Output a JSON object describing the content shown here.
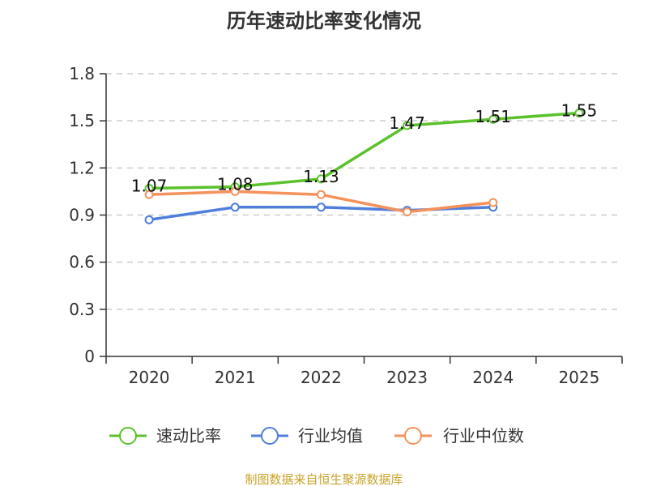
{
  "chart_data": {
    "type": "line",
    "title": "历年速动比率变化情况",
    "categories": [
      "2020",
      "2021",
      "2022",
      "2023",
      "2024",
      "2025"
    ],
    "ylim": [
      0,
      1.8
    ],
    "yticks": [
      "0",
      "0.3",
      "0.6",
      "0.9",
      "1.2",
      "1.5",
      "1.8"
    ],
    "ytick_values": [
      0,
      0.3,
      0.6,
      0.9,
      1.2,
      1.5,
      1.8
    ],
    "grid": true,
    "legend_position": "bottom",
    "series": [
      {
        "name": "速动比率",
        "color": "#5cc22b",
        "values": [
          1.07,
          1.08,
          1.13,
          1.47,
          1.51,
          1.55
        ],
        "labels": [
          "1.07",
          "1.08",
          "1.13",
          "1.47",
          "1.51",
          "1.55"
        ],
        "show_labels": true
      },
      {
        "name": "行业均值",
        "color": "#4f7fdb",
        "values": [
          0.87,
          0.95,
          0.95,
          0.93,
          0.95,
          null
        ],
        "show_labels": false
      },
      {
        "name": "行业中位数",
        "color": "#f5915b",
        "values": [
          1.03,
          1.05,
          1.03,
          0.92,
          0.98,
          null
        ],
        "show_labels": false
      }
    ],
    "source": "制图数据来自恒生聚源数据库",
    "source_color": "#c9a227"
  }
}
